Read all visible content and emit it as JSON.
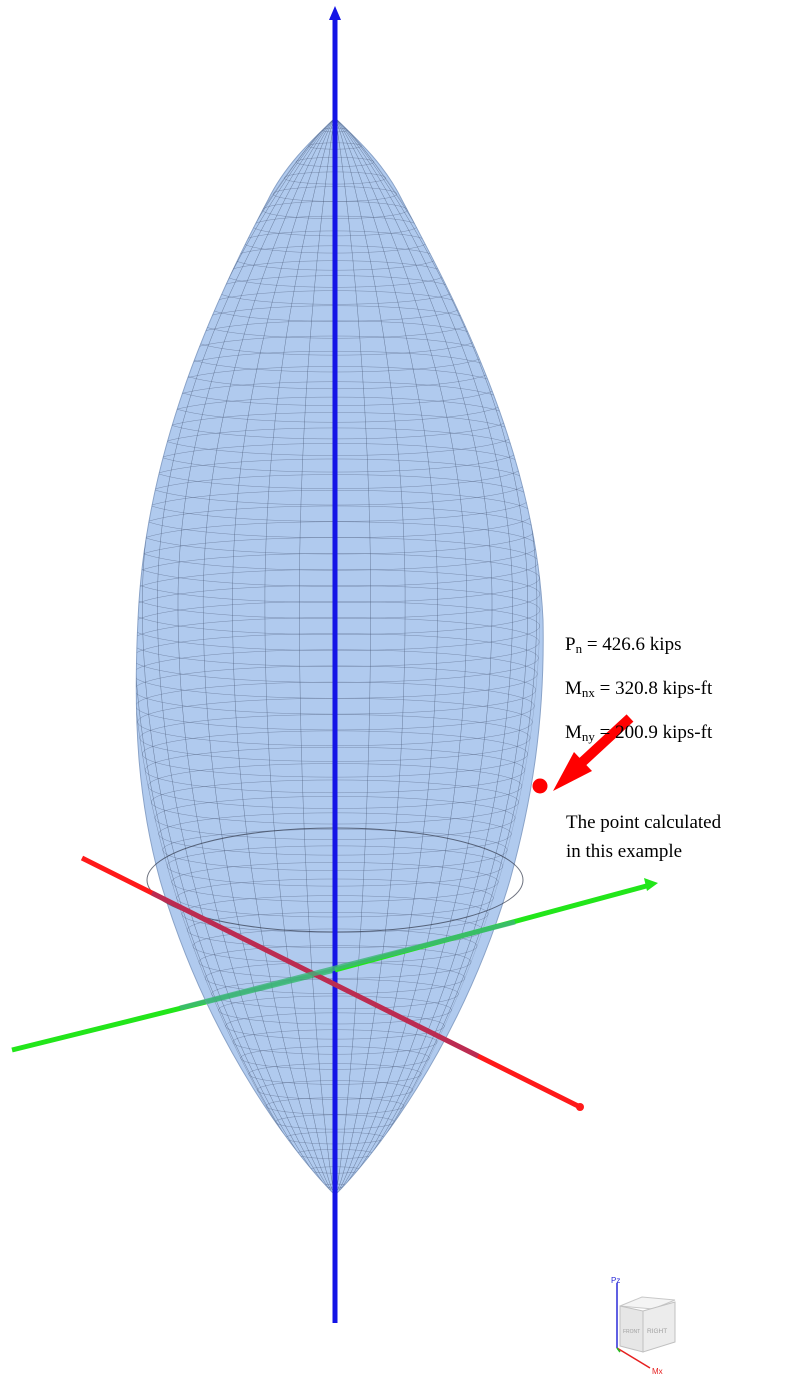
{
  "annotations": {
    "pn": {
      "symbol": "P",
      "sub": "n",
      "text": " = 426.6 kips"
    },
    "mnx": {
      "symbol": "M",
      "sub": "nx",
      "text": " = 320.8 kips-ft"
    },
    "mny": {
      "symbol": "M",
      "sub": "ny",
      "text": " = 200.9 kips-ft"
    },
    "note_line1": "The point calculated",
    "note_line2": "in this example"
  },
  "view_cube": {
    "axis_z": "Pz",
    "axis_x": "Mx",
    "face_front": "FRONT",
    "face_right": "RIGHT"
  },
  "colors": {
    "surface_fill": "#6f9ee0",
    "mesh": "#4a5a78",
    "axis_p": "#1414e6",
    "axis_mx": "#ff1a1a",
    "axis_my": "#22e61a",
    "point": "#ff0000",
    "arrow": "#ff0000"
  }
}
